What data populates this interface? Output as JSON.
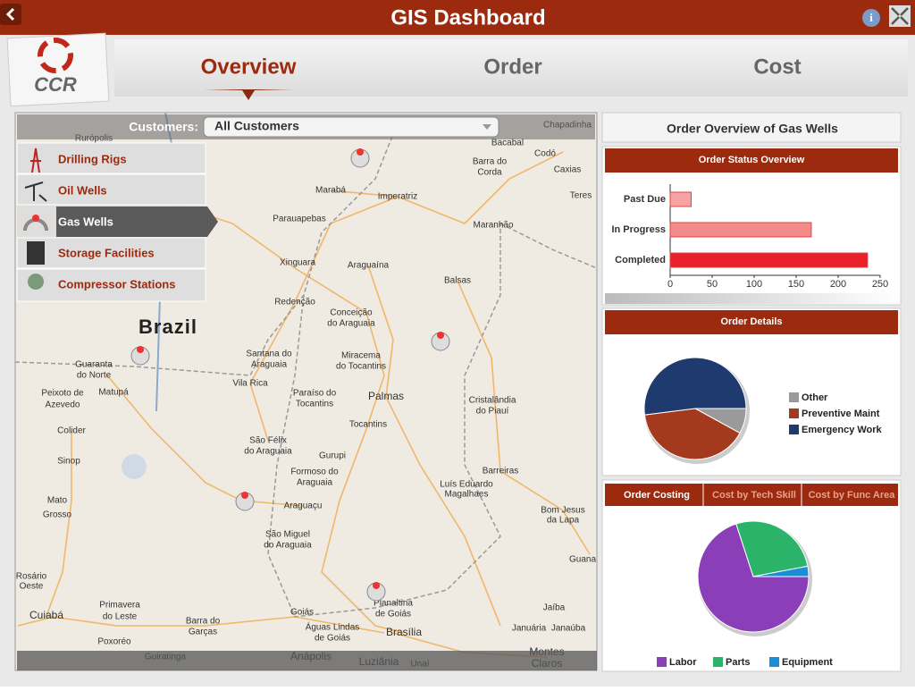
{
  "header": {
    "title": "GIS Dashboard",
    "logo": "CCR"
  },
  "tabs": [
    "Overview",
    "Order",
    "Cost"
  ],
  "map": {
    "customers_label": "Customers:",
    "customers_value": "All Customers",
    "layers": [
      "Drilling Rigs",
      "Oil Wells",
      "Gas Wells",
      "Storage Facilities",
      "Compressor Stations"
    ],
    "labels": [
      "Rurópolis",
      "Marabá",
      "Imperatriz",
      "Barra do",
      "Corda",
      "Bacabal",
      "Codó",
      "Caxias",
      "Chapadinha",
      "Teres",
      "Parauapebas",
      "Maranhão",
      "Xinguara",
      "Araguaína",
      "Balsas",
      "Redenção",
      "Conceição",
      "do Araguaia",
      "Brazil",
      "Santana do",
      "Araguaia",
      "Miracema",
      "do Tocantins",
      "Guaranta",
      "do Norte",
      "Vila Rica",
      "Paraíso do",
      "Tocantins",
      "Palmas",
      "Cristalândia",
      "do Piauí",
      "Peixoto de",
      "Azevedo",
      "Matupá",
      "Tocantins",
      "Colider",
      "São Félix",
      "do Araguaia",
      "Sinop",
      "Gurupi",
      "Formoso do",
      "Araguaia",
      "Barreiras",
      "Luís Eduardo",
      "Magalhaes",
      "Mato",
      "Grosso",
      "Araguaçu",
      "Bom Jesus",
      "da Lapa",
      "São Miguel",
      "do Araguaia",
      "Guana",
      "Rosário",
      "Oeste",
      "Primavera",
      "do Leste",
      "Planaltina",
      "de Goiás",
      "Jaíba",
      "Goiás",
      "Cuiabá",
      "Barra do",
      "Garças",
      "Águas Lindas",
      "de Goiás",
      "Brasília",
      "Januária",
      "Janaúba",
      "Poxoréo",
      "Anápolis",
      "Luziânia",
      "Montes",
      "Claros",
      "Guiratinga",
      "Unaí"
    ]
  },
  "panel": {
    "title": "Order Overview of Gas Wells",
    "costing_tabs": [
      "Order Costing",
      "Cost by Tech Skill",
      "Cost by Func Area"
    ]
  },
  "chart_data": [
    {
      "type": "bar",
      "orientation": "horizontal",
      "title": "Order Status Overview",
      "categories": [
        "Past Due",
        "In Progress",
        "Completed"
      ],
      "values": [
        25,
        168,
        235
      ],
      "colors": [
        "#f7a3a3",
        "#f58a8a",
        "#e8202a"
      ],
      "xlim": [
        0,
        250
      ],
      "xticks": [
        0,
        50,
        100,
        150,
        200,
        250
      ]
    },
    {
      "type": "pie",
      "title": "Order Details",
      "categories": [
        "Other",
        "Preventive Maint",
        "Emergency Work"
      ],
      "values": [
        8,
        40,
        52
      ],
      "colors": [
        "#9a9a9a",
        "#a33a1e",
        "#1f3a6e"
      ]
    },
    {
      "type": "pie",
      "categories": [
        "Labor",
        "Parts",
        "Equipment"
      ],
      "values": [
        70,
        27,
        3
      ],
      "colors": [
        "#8a3fb8",
        "#2bb36a",
        "#1a8fd8"
      ]
    }
  ]
}
